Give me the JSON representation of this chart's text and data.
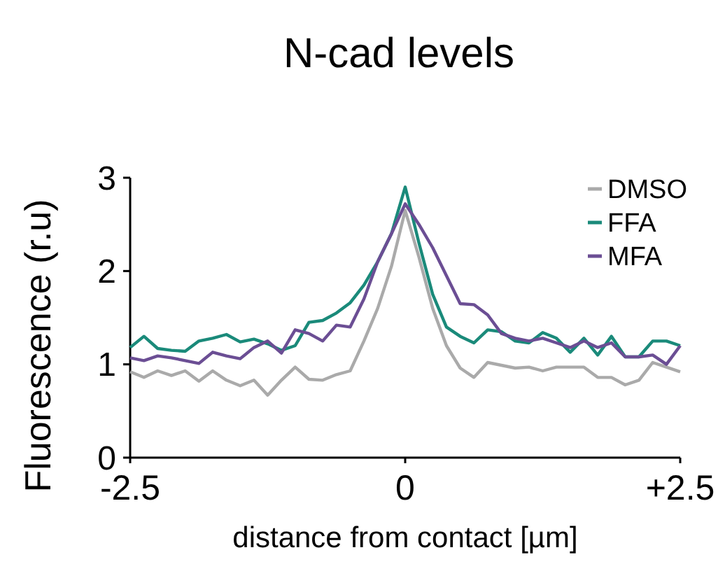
{
  "chart_data": {
    "type": "line",
    "title": "N-cad levels",
    "xlabel": "distance from contact [µm]",
    "ylabel": "Fluorescence (r.u)",
    "x": [
      -2.5,
      -2.375,
      -2.25,
      -2.125,
      -2,
      -1.875,
      -1.75,
      -1.625,
      -1.5,
      -1.375,
      -1.25,
      -1.125,
      -1,
      -0.875,
      -0.75,
      -0.625,
      -0.5,
      -0.375,
      -0.25,
      -0.125,
      0,
      0.125,
      0.25,
      0.375,
      0.5,
      0.625,
      0.75,
      0.875,
      1,
      1.125,
      1.25,
      1.375,
      1.5,
      1.625,
      1.75,
      1.875,
      2,
      2.125,
      2.25,
      2.375,
      2.5
    ],
    "series": [
      {
        "name": "DMSO",
        "color": "#aaaaaa",
        "values": [
          0.92,
          0.86,
          0.93,
          0.88,
          0.93,
          0.82,
          0.93,
          0.83,
          0.77,
          0.83,
          0.67,
          0.83,
          0.97,
          0.84,
          0.83,
          0.89,
          0.93,
          1.25,
          1.6,
          2.05,
          2.65,
          2.15,
          1.6,
          1.2,
          0.96,
          0.86,
          1.02,
          0.99,
          0.96,
          0.97,
          0.93,
          0.97,
          0.97,
          0.97,
          0.86,
          0.86,
          0.78,
          0.83,
          1.02,
          0.97,
          0.92
        ]
      },
      {
        "name": "FFA",
        "color": "#1a8a7a",
        "values": [
          1.18,
          1.3,
          1.17,
          1.15,
          1.14,
          1.25,
          1.28,
          1.32,
          1.24,
          1.27,
          1.22,
          1.15,
          1.2,
          1.45,
          1.47,
          1.55,
          1.66,
          1.85,
          2.1,
          2.4,
          2.9,
          2.3,
          1.75,
          1.4,
          1.3,
          1.23,
          1.37,
          1.35,
          1.25,
          1.23,
          1.34,
          1.28,
          1.13,
          1.28,
          1.1,
          1.3,
          1.08,
          1.08,
          1.25,
          1.25,
          1.2
        ]
      },
      {
        "name": "MFA",
        "color": "#6b4e94",
        "values": [
          1.07,
          1.04,
          1.09,
          1.07,
          1.04,
          1.01,
          1.13,
          1.09,
          1.06,
          1.18,
          1.25,
          1.12,
          1.37,
          1.33,
          1.25,
          1.42,
          1.4,
          1.7,
          2.1,
          2.4,
          2.72,
          2.5,
          2.25,
          1.95,
          1.65,
          1.64,
          1.53,
          1.33,
          1.28,
          1.25,
          1.28,
          1.23,
          1.18,
          1.25,
          1.18,
          1.23,
          1.08,
          1.08,
          1.1,
          1.0,
          1.2
        ]
      }
    ],
    "xlim": [
      -2.5,
      2.5
    ],
    "xticks": [
      -2.5,
      0,
      {
        "value": 2.5,
        "label": "+2.5"
      }
    ],
    "ylim": [
      0,
      3
    ],
    "yticks": [
      0,
      1,
      2,
      3
    ],
    "legend": "top right",
    "grid": false,
    "marker": "none",
    "line_style": "solid"
  }
}
